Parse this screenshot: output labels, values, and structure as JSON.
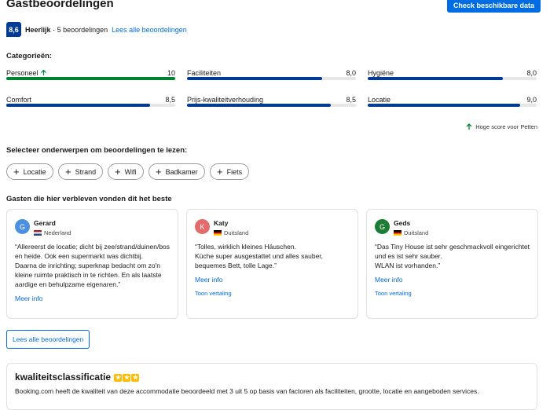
{
  "header": {
    "title": "Gastbeoordelingen",
    "button": "Check beschikbare data"
  },
  "summary": {
    "score": "8,6",
    "rating": "Heerlijk",
    "separator": "·",
    "count": "5 beoordelingen",
    "link": "Lees alle beoordelingen"
  },
  "categories": {
    "title": "Categorieën:",
    "xlim": [
      0,
      10
    ],
    "items": [
      {
        "name": "Personeel",
        "score": {
          "value": 10,
          "label": "10"
        },
        "color": "#008234"
      },
      {
        "name": "Faciliteiten",
        "score": {
          "value": 8.0,
          "label": "8,0"
        },
        "color": "#003b95"
      },
      {
        "name": "Hygiëne",
        "score": {
          "value": 8.0,
          "label": "8,0"
        },
        "color": "#003b95"
      },
      {
        "name": "Comfort",
        "score": {
          "value": 8.5,
          "label": "8,5"
        },
        "color": "#003b95"
      },
      {
        "name": "Prijs-kwaliteitverhouding",
        "score": {
          "value": 8.5,
          "label": "8,5"
        },
        "color": "#003b95"
      },
      {
        "name": "Locatie",
        "score": {
          "value": 9.0,
          "label": "9,0"
        },
        "color": "#003b95"
      }
    ],
    "note": "Hoge score voor Petten"
  },
  "topics": {
    "title": "Selecteer onderwerpen om beoordelingen te lezen:",
    "chips": [
      "Locatie",
      "Strand",
      "Wifi",
      "Badkamer",
      "Fiets"
    ]
  },
  "reviews": {
    "title": "Gasten die hier verbleven vonden dit het beste",
    "items": [
      {
        "initial": "G",
        "name": "Gerard",
        "country": "Nederland",
        "text": [
          "“Allereerst de locatie; dicht bij zee/strand/duinen/bos en heide. Ook een supermarkt was dichtbij.",
          "Daarna de inrichting; superknap bedacht om zo'n kleine ruimte praktisch in te richten. En als laatste aardige en behulpzame eigenaren.”"
        ],
        "more": "Meer info"
      },
      {
        "initial": "K",
        "name": "Katy",
        "country": "Duitsland",
        "text": [
          "“Tolles, wirklich kleines Häuschen.",
          "Küche super ausgestattet und alles sauber, bequemes Bett, tolle Lage.”"
        ],
        "more": "Meer info",
        "translate": "Toon vertaling"
      },
      {
        "initial": "G",
        "name": "Geds",
        "country": "Duitsland",
        "text": [
          "“Das Tiny House ist sehr geschmackvoll eingerichtet und es ist sehr sauber.",
          "WLAN ist vorhanden.”"
        ],
        "more": "Meer info",
        "translate": "Toon vertaling"
      }
    ],
    "button": "Lees alle beoordelingen"
  },
  "quality": {
    "title": "kwaliteitsclassificatie",
    "text": "Booking.com heeft de kwaliteit van deze accommodatie beoordeeld met 3 uit 5 op basis van factoren als faciliteiten, grootte, locatie en aangeboden services."
  }
}
